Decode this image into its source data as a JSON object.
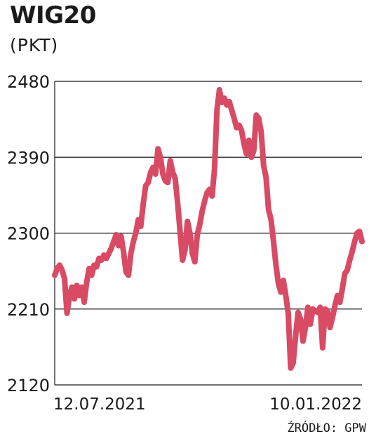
{
  "chart_data": {
    "type": "line",
    "title": "WIG20",
    "subtitle": "(PKT)",
    "source": "ŹRÓDŁO: GPW",
    "ylim": [
      2120,
      2480
    ],
    "yticks": [
      "2480",
      "2390",
      "2300",
      "2210",
      "2120"
    ],
    "yticks_values": [
      2480,
      2390,
      2300,
      2210,
      2120
    ],
    "xtick_labels": [
      "12.07.2021",
      "10.01.2022"
    ],
    "grid": true,
    "line_color": "#d94a64",
    "series": [
      {
        "values": [
          2250,
          2258,
          2262,
          2256,
          2246,
          2205,
          2225,
          2236,
          2222,
          2238,
          2226,
          2236,
          2218,
          2242,
          2258,
          2250,
          2262,
          2260,
          2270,
          2268,
          2274,
          2270,
          2276,
          2282,
          2290,
          2298,
          2285,
          2296,
          2278,
          2254,
          2250,
          2276,
          2290,
          2300,
          2316,
          2308,
          2334,
          2356,
          2360,
          2372,
          2378,
          2370,
          2400,
          2390,
          2370,
          2362,
          2360,
          2386,
          2372,
          2365,
          2336,
          2302,
          2268,
          2280,
          2314,
          2300,
          2276,
          2266,
          2298,
          2310,
          2326,
          2338,
          2348,
          2352,
          2344,
          2376,
          2446,
          2470,
          2455,
          2460,
          2452,
          2456,
          2446,
          2436,
          2425,
          2428,
          2422,
          2406,
          2394,
          2410,
          2390,
          2398,
          2440,
          2436,
          2420,
          2380,
          2366,
          2328,
          2316,
          2290,
          2262,
          2240,
          2230,
          2244,
          2226,
          2205,
          2140,
          2146,
          2178,
          2206,
          2198,
          2172,
          2188,
          2212,
          2192,
          2210,
          2208,
          2206,
          2212,
          2164,
          2210,
          2208,
          2188,
          2200,
          2214,
          2226,
          2218,
          2234,
          2252,
          2256,
          2268,
          2278,
          2290,
          2300,
          2302,
          2290
        ]
      }
    ]
  }
}
